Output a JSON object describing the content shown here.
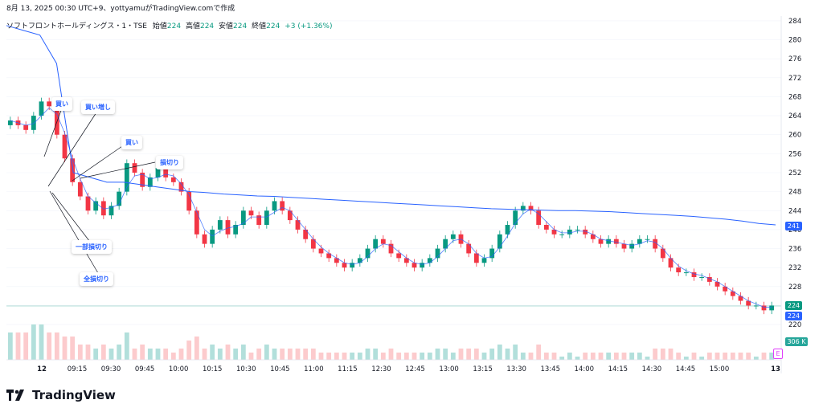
{
  "header": {
    "title": "8月 13, 2025 00:30 UTC+9、yottyamuがTradingView.comで作成"
  },
  "legend": {
    "symbol": "ソフトフロントホールディングス・1・TSE",
    "open_label": "始値",
    "open": "224",
    "high_label": "高値",
    "high": "224",
    "low_label": "安値",
    "low": "224",
    "close_label": "終値",
    "close": "224",
    "change": "+3 (+1.36%)"
  },
  "brand": {
    "name": "TradingView"
  },
  "annotations": {
    "buy1": "買い",
    "add_buy": "買い増し",
    "buy2": "買い",
    "stop_loss": "損切り",
    "partial_stop": "一部損切り",
    "full_stop": "全損切り"
  },
  "price_tags": {
    "vwap": "241",
    "last_green": "224",
    "last_blue": "224",
    "volume": "306 K"
  },
  "earnings_badge": "E",
  "colors": {
    "up": "#089981",
    "down": "#f23645",
    "vwap": "#2962ff",
    "ma": "#2962ff",
    "vol_up": "#b2dfdb",
    "vol_down": "#fccbcd"
  },
  "chart_data": {
    "type": "candlestick",
    "y_axis_ticks": [
      "284",
      "280",
      "276",
      "272",
      "268",
      "264",
      "260",
      "256",
      "252",
      "248",
      "244",
      "240",
      "236",
      "232",
      "228",
      "224",
      "220"
    ],
    "ylim": [
      219,
      285
    ],
    "x_axis_ticks": [
      "12",
      "09:15",
      "09:30",
      "09:45",
      "10:00",
      "10:15",
      "10:30",
      "10:45",
      "11:00",
      "11:15",
      "12:30",
      "12:45",
      "13:00",
      "13:15",
      "13:30",
      "13:45",
      "14:00",
      "14:15",
      "14:30",
      "14:45",
      "15:00",
      "13"
    ],
    "last_price": 224,
    "series": [
      {
        "name": "",
        "kind": "vwap",
        "values": [
          283,
          282,
          281,
          275,
          252,
          251,
          250,
          250,
          249.5,
          249,
          248.5,
          248,
          247.8,
          247.5,
          247.3,
          247.1,
          247,
          246.8,
          246.6,
          246.4,
          246.2,
          246,
          245.8,
          245.6,
          245.4,
          245.2,
          245,
          244.8,
          244.6,
          244.4,
          244.3,
          244.2,
          244.1,
          244,
          244,
          243.9,
          243.8,
          243.6,
          243.4,
          243.2,
          243,
          242.8,
          242.5,
          242.2,
          241.8,
          241.3,
          241
        ]
      },
      {
        "name": "",
        "kind": "close",
        "values": [
          263,
          262,
          261,
          264,
          267,
          266,
          260,
          255,
          250,
          247,
          244,
          246,
          243,
          245,
          248,
          254,
          252,
          249,
          251,
          253,
          251,
          250,
          248,
          244,
          239,
          237,
          240,
          242,
          239,
          241,
          244,
          243,
          241,
          244,
          246,
          244,
          242,
          240,
          238,
          236,
          235,
          234,
          233,
          232,
          233,
          234,
          236,
          238,
          237,
          235,
          234,
          233,
          232,
          233,
          234,
          236,
          238,
          239,
          237,
          235,
          233,
          234,
          236,
          239,
          241,
          244,
          245,
          244,
          241,
          240,
          239,
          239,
          240,
          240,
          239,
          238,
          237,
          238,
          237,
          236,
          237,
          238,
          238,
          236,
          234,
          232,
          231,
          231,
          230,
          230,
          229,
          228,
          227,
          226,
          225,
          224,
          224,
          223,
          224
        ]
      }
    ]
  }
}
